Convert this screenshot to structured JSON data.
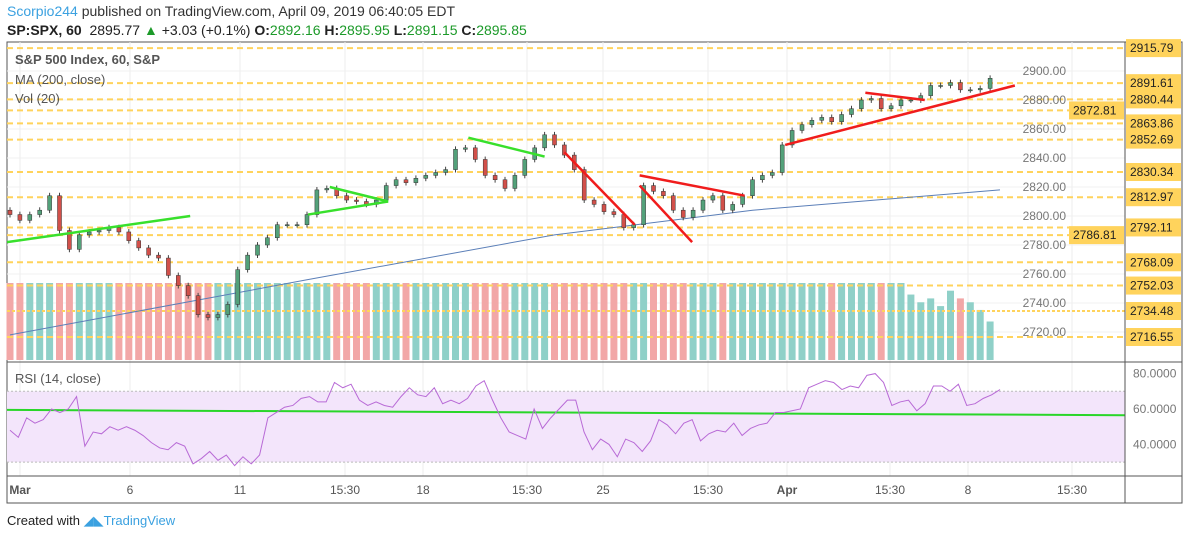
{
  "header": {
    "author": "Scorpio244",
    "published": "published on TradingView.com, April 09, 2019 06:40:05 EDT",
    "symbol": "SP:SPX, 60",
    "last": "2895.77",
    "change": "+3.03 (+0.1%)",
    "o_label": "O:",
    "o": "2892.16",
    "h_label": "H:",
    "h": "2895.95",
    "l_label": "L:",
    "l": "2891.15",
    "c_label": "C:",
    "c": "2895.85"
  },
  "legend": {
    "main": "S&P 500 Index, 60, S&P",
    "ma": "MA (200, close)",
    "vol": "Vol (20)",
    "rsi": "RSI (14, close)"
  },
  "footer": {
    "created": "Created with",
    "brand": "TradingView"
  },
  "colors": {
    "up": "#53a17a",
    "down": "#d2504a",
    "vol_up": "#8fd0c8",
    "vol_down": "#f2a7a7",
    "ma": "#5b7fb8",
    "rsi": "#b86ad6",
    "level": "#ffd35c",
    "trend_red": "#f01c1c",
    "trend_green": "#38e02c"
  },
  "chart_data": [
    {
      "type": "candlestick",
      "title": "S&P 500 Index, 60, S&P",
      "ylim": [
        2710,
        2920
      ],
      "y_ticks": [
        "2900.00",
        "2880.00",
        "2860.00",
        "2840.00",
        "2820.00",
        "2800.00",
        "2780.00",
        "2760.00",
        "2740.00",
        "2720.00"
      ],
      "x_ticks": [
        "Mar",
        "6",
        "11",
        "15:30",
        "18",
        "15:30",
        "25",
        "15:30",
        "Apr",
        "15:30",
        "8",
        "15:30"
      ],
      "closes": [
        2804,
        2801,
        2797,
        2801,
        2804,
        2814,
        2790,
        2777,
        2787,
        2789,
        2790,
        2792,
        2789,
        2783,
        2778,
        2773,
        2771,
        2759,
        2752,
        2745,
        2732,
        2730,
        2732,
        2739,
        2763,
        2773,
        2780,
        2785,
        2794,
        2794,
        2794,
        2801,
        2818,
        2819,
        2814,
        2811,
        2810,
        2808,
        2811,
        2821,
        2825,
        2823,
        2826,
        2828,
        2830,
        2832,
        2846,
        2847,
        2839,
        2828,
        2825,
        2819,
        2828,
        2839,
        2847,
        2856,
        2849,
        2842,
        2832,
        2811,
        2808,
        2803,
        2801,
        2792,
        2794,
        2821,
        2817,
        2814,
        2804,
        2799,
        2804,
        2811,
        2814,
        2804,
        2808,
        2814,
        2825,
        2828,
        2830,
        2849,
        2859,
        2863,
        2866,
        2868,
        2865,
        2870,
        2874,
        2880,
        2881,
        2874,
        2876,
        2880,
        2880,
        2883,
        2890,
        2890,
        2892,
        2887,
        2887,
        2888,
        2895
      ],
      "ma_200": [
        [
          0,
          2718
        ],
        [
          30,
          2756
        ],
        [
          55,
          2787
        ],
        [
          75,
          2804
        ],
        [
          100,
          2818
        ]
      ],
      "volume_relative_tail": [
        0.85,
        0.75,
        0.8,
        0.7,
        0.9,
        0.8,
        0.75,
        0.65,
        0.5
      ],
      "levels": [
        2915.79,
        2891.61,
        2880.44,
        2872.81,
        2863.86,
        2852.69,
        2830.34,
        2812.97,
        2792.11,
        2786.81,
        2768.09,
        2752.03,
        2734.48,
        2716.55
      ],
      "trendlines": [
        {
          "color": "green",
          "from": [
            -0.3,
            2782
          ],
          "to": [
            18.2,
            2800
          ]
        },
        {
          "color": "green",
          "from": [
            32.3,
            2820
          ],
          "to": [
            38.2,
            2810
          ]
        },
        {
          "color": "green",
          "from": [
            30.1,
            2801
          ],
          "to": [
            38.2,
            2810
          ]
        },
        {
          "color": "green",
          "from": [
            46.3,
            2854
          ],
          "to": [
            54,
            2841
          ]
        },
        {
          "color": "red",
          "from": [
            56,
            2844
          ],
          "to": [
            63.1,
            2794
          ]
        },
        {
          "color": "red",
          "from": [
            63.6,
            2828
          ],
          "to": [
            74.2,
            2814
          ]
        },
        {
          "color": "red",
          "from": [
            63.6,
            2821
          ],
          "to": [
            68.9,
            2782
          ]
        },
        {
          "color": "red",
          "from": [
            78.3,
            2849
          ],
          "to": [
            101.5,
            2890
          ]
        },
        {
          "color": "red",
          "from": [
            86.4,
            2885
          ],
          "to": [
            92.4,
            2880
          ]
        }
      ]
    },
    {
      "type": "line",
      "title": "RSI (14, close)",
      "ylim": [
        20,
        86
      ],
      "y_ticks": [
        "80.0000",
        "60.0000",
        "40.0000"
      ],
      "bands": [
        30,
        70
      ],
      "trendline": [
        59.5,
        56.5
      ],
      "values": [
        48,
        44,
        55,
        52,
        54,
        60,
        58,
        60,
        67,
        39,
        47,
        46,
        50,
        48,
        50,
        48,
        45,
        41,
        38,
        37,
        41,
        39,
        29,
        32,
        36,
        31,
        34,
        28,
        33,
        29,
        34,
        55,
        58,
        61,
        62,
        66,
        67,
        64,
        64,
        75,
        72,
        74,
        65,
        62,
        64,
        62,
        61,
        67,
        72,
        68,
        67,
        72,
        63,
        65,
        63,
        66,
        73,
        76,
        65,
        55,
        47,
        45,
        43,
        60,
        49,
        55,
        60,
        65,
        65,
        47,
        37,
        43,
        40,
        33,
        43,
        41,
        36,
        42,
        54,
        51,
        46,
        52,
        54,
        42,
        46,
        48,
        47,
        52,
        45,
        49,
        51,
        52,
        58,
        58,
        59,
        60,
        72,
        74,
        76,
        75,
        71,
        73,
        72,
        79,
        80,
        75,
        62,
        64,
        65,
        59,
        63,
        73,
        73,
        70,
        74,
        62,
        63,
        66,
        68,
        71
      ]
    }
  ]
}
